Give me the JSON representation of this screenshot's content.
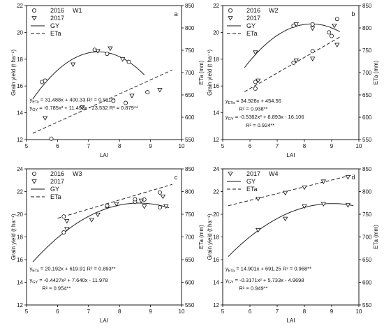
{
  "chart_data": [
    {
      "type": "scatter",
      "panel": "a",
      "site": "W1",
      "legend": [
        "2016",
        "2017",
        "GY",
        "ETa"
      ],
      "xlabel": "LAI",
      "ylabel_left": "Grain yield (t ha⁻¹)",
      "ylabel_right": "ETa (mm)",
      "xlim": [
        5,
        10
      ],
      "ylim_left": [
        12,
        22
      ],
      "ylim_right": [
        550,
        850
      ],
      "x_ticks": [
        "5",
        "6",
        "7",
        "8",
        "9",
        "10"
      ],
      "yl_ticks": [
        "12",
        "14",
        "16",
        "18",
        "20",
        "22"
      ],
      "yr_ticks": [
        "550",
        "600",
        "650",
        "700",
        "750",
        "800",
        "850"
      ],
      "equations": {
        "eta": "y_ETa = 31.488x + 400.33   R² = 0.911**",
        "gy": "y_GY = -0.785x² + 11.495x - 23.532   R² = 0.879**"
      },
      "fits": {
        "gy": {
          "a": -0.785,
          "b": 11.495,
          "c": -23.532,
          "x": [
            5.2,
            8.8
          ]
        },
        "eta": {
          "slope": 31.488,
          "intercept": 400.33,
          "x": [
            5.2,
            9.7
          ]
        }
      },
      "series": [
        {
          "name": "2016",
          "kind": "GY",
          "points": [
            [
              5.5,
              16.3
            ],
            [
              5.6,
              16.4
            ],
            [
              7.2,
              18.7
            ],
            [
              7.6,
              18.4
            ],
            [
              8.3,
              17.8
            ]
          ]
        },
        {
          "name": "2017",
          "kind": "GY",
          "points": [
            [
              6.5,
              17.6
            ],
            [
              7.3,
              18.6
            ],
            [
              7.7,
              18.8
            ],
            [
              8.1,
              18.0
            ]
          ]
        },
        {
          "name": "2016",
          "kind": "ETa",
          "points": [
            [
              5.8,
              552
            ],
            [
              7.8,
              637
            ],
            [
              8.2,
              632
            ],
            [
              8.9,
              656
            ]
          ]
        },
        {
          "name": "2017",
          "kind": "ETa",
          "points": [
            [
              5.6,
              598
            ],
            [
              6.8,
              622
            ],
            [
              8.4,
              648
            ],
            [
              9.3,
              661
            ]
          ]
        }
      ]
    },
    {
      "type": "scatter",
      "panel": "b",
      "site": "W2",
      "legend": [
        "2016",
        "2017",
        "GY",
        "ETa"
      ],
      "xlabel": "LAI",
      "ylabel_left": "Grain yield (t ha⁻¹)",
      "ylabel_right": "ETa (mm)",
      "xlim": [
        5,
        10
      ],
      "ylim_left": [
        12,
        22
      ],
      "ylim_right": [
        550,
        850
      ],
      "x_ticks": [
        "5",
        "6",
        "7",
        "8",
        "9",
        "10"
      ],
      "yl_ticks": [
        "12",
        "14",
        "16",
        "18",
        "20",
        "22"
      ],
      "yr_ticks": [
        "550",
        "600",
        "650",
        "700",
        "750",
        "800",
        "850"
      ],
      "equations": {
        "eta": "y_ETa = 34.928x + 454.56",
        "eta_r2": "R² = 0.938**",
        "gy": "y_GY = -0.5382x² + 8.893x - 16.106",
        "gy_r2": "R² = 0.924**"
      },
      "fits": {
        "gy": {
          "a": -0.5382,
          "b": 8.893,
          "c": -16.106,
          "x": [
            5.8,
            9.3
          ]
        },
        "eta": {
          "slope": 34.928,
          "intercept": 454.56,
          "x": [
            5.8,
            9.3
          ]
        }
      },
      "series": [
        {
          "name": "2016",
          "kind": "GY",
          "points": [
            [
              6.2,
              16.3
            ],
            [
              7.6,
              20.5
            ],
            [
              8.3,
              20.6
            ],
            [
              8.9,
              20.0
            ],
            [
              9.2,
              21.0
            ]
          ]
        },
        {
          "name": "2017",
          "kind": "GY",
          "points": [
            [
              6.2,
              18.5
            ],
            [
              7.7,
              20.6
            ],
            [
              8.3,
              20.3
            ],
            [
              9.1,
              20.5
            ]
          ]
        },
        {
          "name": "2016",
          "kind": "ETa",
          "points": [
            [
              6.2,
              664
            ],
            [
              7.6,
              722
            ],
            [
              8.3,
              748
            ],
            [
              9.0,
              782
            ]
          ]
        },
        {
          "name": "2017",
          "kind": "ETa",
          "points": [
            [
              6.3,
              682
            ],
            [
              7.7,
              727
            ],
            [
              8.3,
              731
            ],
            [
              9.2,
              762
            ]
          ]
        }
      ]
    },
    {
      "type": "scatter",
      "panel": "c",
      "site": "W3",
      "legend": [
        "2016",
        "2017",
        "GY",
        "ETa"
      ],
      "xlabel": "LAI",
      "ylabel_left": "Grain yield (t ha⁻¹)",
      "ylabel_right": "ETa (mm)",
      "xlim": [
        5,
        10
      ],
      "ylim_left": [
        12,
        24
      ],
      "ylim_right": [
        550,
        850
      ],
      "x_ticks": [
        "5",
        "6",
        "7",
        "8",
        "9",
        "10"
      ],
      "yl_ticks": [
        "12",
        "14",
        "16",
        "18",
        "20",
        "22",
        "24"
      ],
      "yr_ticks": [
        "550",
        "600",
        "650",
        "700",
        "750",
        "800",
        "850"
      ],
      "equations": {
        "eta": "y_ETa = 20.192x + 619.91   R² = 0.893**",
        "gy": "y_GY = -0.4427x² + 7.640x - 11.978",
        "gy_r2": "R² = 0.954**"
      },
      "fits": {
        "gy": {
          "a": -0.4427,
          "b": 7.64,
          "c": -11.978,
          "x": [
            5.2,
            9.6
          ]
        },
        "eta": {
          "slope": 20.192,
          "intercept": 619.91,
          "x": [
            6.0,
            9.7
          ]
        }
      },
      "series": [
        {
          "name": "2016",
          "kind": "GY",
          "points": [
            [
              6.2,
              18.4
            ],
            [
              7.6,
              20.7
            ],
            [
              8.5,
              21.1
            ],
            [
              8.8,
              21.3
            ],
            [
              9.3,
              20.6
            ]
          ]
        },
        {
          "name": "2017",
          "kind": "GY",
          "points": [
            [
              6.3,
              18.7
            ],
            [
              7.1,
              19.5
            ],
            [
              7.9,
              20.9
            ],
            [
              8.7,
              21.2
            ],
            [
              9.5,
              20.7
            ]
          ]
        },
        {
          "name": "2016",
          "kind": "ETa",
          "points": [
            [
              6.2,
              745
            ],
            [
              7.6,
              769
            ],
            [
              8.5,
              783
            ],
            [
              9.3,
              798
            ]
          ]
        },
        {
          "name": "2017",
          "kind": "ETa",
          "points": [
            [
              6.3,
              735
            ],
            [
              7.3,
              749
            ],
            [
              8.8,
              767
            ],
            [
              9.4,
              789
            ]
          ]
        }
      ]
    },
    {
      "type": "scatter",
      "panel": "d",
      "site": "W4",
      "legend": [
        "2017",
        "GY",
        "ETa"
      ],
      "xlabel": "LAI",
      "ylabel_left": "Grain yield (t ha⁻¹)",
      "ylabel_right": "ETa (mm)",
      "xlim": [
        5,
        10
      ],
      "ylim_left": [
        12,
        24
      ],
      "ylim_right": [
        550,
        850
      ],
      "x_ticks": [
        "5",
        "6",
        "7",
        "8",
        "9",
        "10"
      ],
      "yl_ticks": [
        "12",
        "14",
        "16",
        "18",
        "20",
        "22",
        "24"
      ],
      "yr_ticks": [
        "550",
        "600",
        "650",
        "700",
        "750",
        "800",
        "850"
      ],
      "equations": {
        "eta": "y_ETa = 14.901x + 691.25   R² = 0.968**",
        "gy": "y_GY = -0.3171x² + 5.733x - 4.9698",
        "gy_r2": "R² = 0.949**"
      },
      "fits": {
        "gy": {
          "a": -0.3171,
          "b": 5.733,
          "c": -4.9698,
          "x": [
            5.2,
            9.8
          ]
        },
        "eta": {
          "slope": 14.901,
          "intercept": 691.25,
          "x": [
            5.2,
            9.8
          ]
        }
      },
      "series": [
        {
          "name": "2017",
          "kind": "GY",
          "points": [
            [
              6.3,
              18.6
            ],
            [
              7.3,
              19.6
            ],
            [
              8.0,
              20.7
            ],
            [
              8.7,
              20.9
            ],
            [
              9.6,
              20.8
            ]
          ]
        },
        {
          "name": "2017",
          "kind": "ETa",
          "points": [
            [
              6.3,
              784
            ],
            [
              7.3,
              797
            ],
            [
              8.0,
              809
            ],
            [
              8.7,
              822
            ],
            [
              9.6,
              832
            ]
          ]
        }
      ]
    }
  ]
}
